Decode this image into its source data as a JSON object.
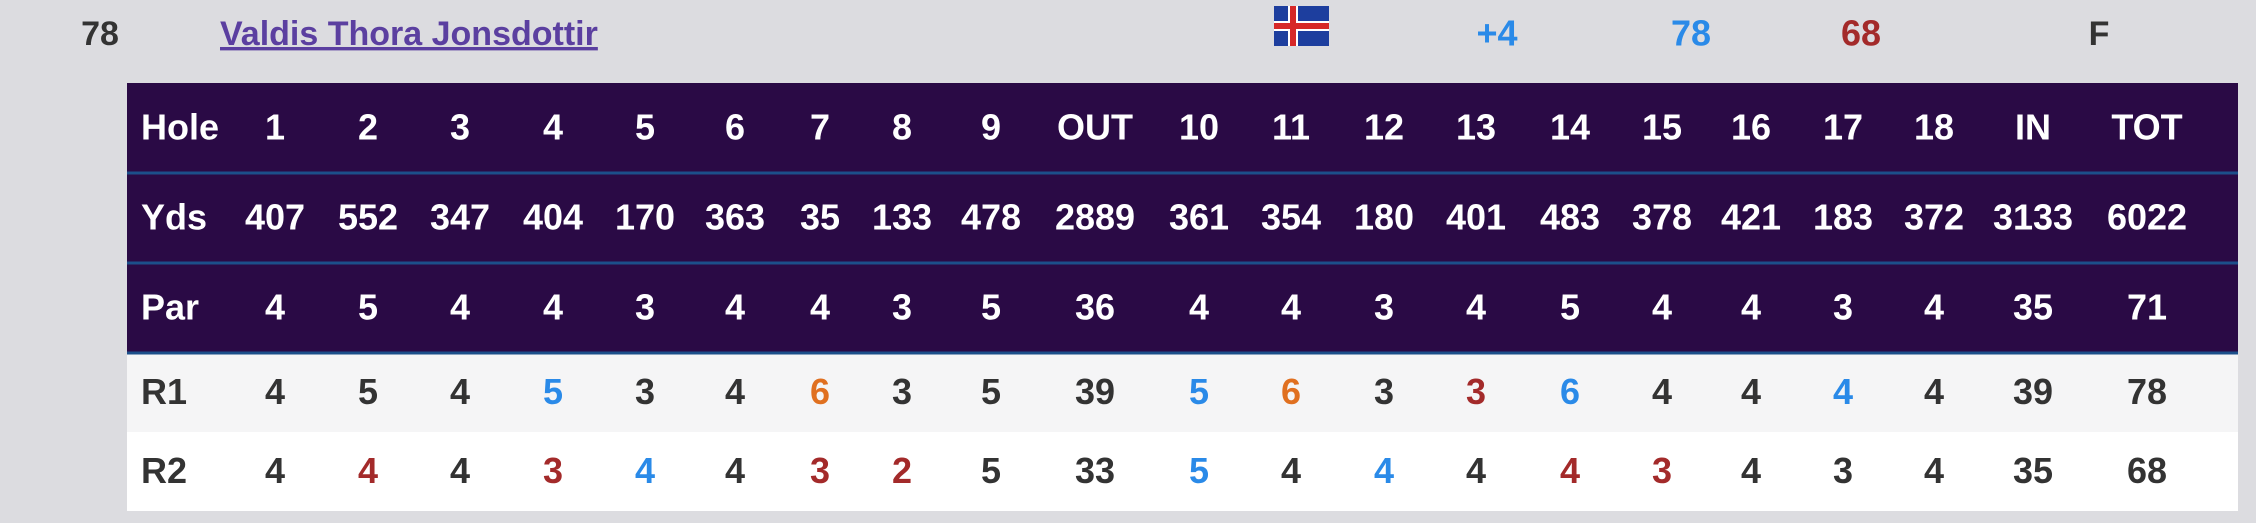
{
  "player": {
    "position": "78",
    "name": "Valdis Thora Jonsdottir",
    "to_par": "+4",
    "r1": "78",
    "r2": "68",
    "status": "F"
  },
  "scorecard": {
    "header": [
      "Hole",
      "1",
      "2",
      "3",
      "4",
      "5",
      "6",
      "7",
      "8",
      "9",
      "OUT",
      "10",
      "11",
      "12",
      "13",
      "14",
      "15",
      "16",
      "17",
      "18",
      "IN",
      "TOT"
    ],
    "rows": [
      [
        "Yds",
        "407",
        "552",
        "347",
        "404",
        "170",
        "363",
        "35",
        "133",
        "478",
        "2889",
        "361",
        "354",
        "180",
        "401",
        "483",
        "378",
        "421",
        "183",
        "372",
        "3133",
        "6022"
      ],
      [
        "Par",
        "4",
        "5",
        "4",
        "4",
        "3",
        "4",
        "4",
        "3",
        "5",
        "36",
        "4",
        "4",
        "3",
        "4",
        "5",
        "4",
        "4",
        "3",
        "4",
        "35",
        "71"
      ],
      [
        "R1",
        "4",
        "5",
        "4",
        "5",
        "3",
        "4",
        "6",
        "3",
        "5",
        "39",
        "5",
        "6",
        "3",
        "3",
        "6",
        "4",
        "4",
        "4",
        "4",
        "39",
        "78"
      ],
      [
        "R2",
        "4",
        "4",
        "4",
        "3",
        "4",
        "4",
        "3",
        "2",
        "5",
        "33",
        "5",
        "4",
        "4",
        "4",
        "4",
        "3",
        "4",
        "3",
        "4",
        "35",
        "68"
      ]
    ]
  }
}
